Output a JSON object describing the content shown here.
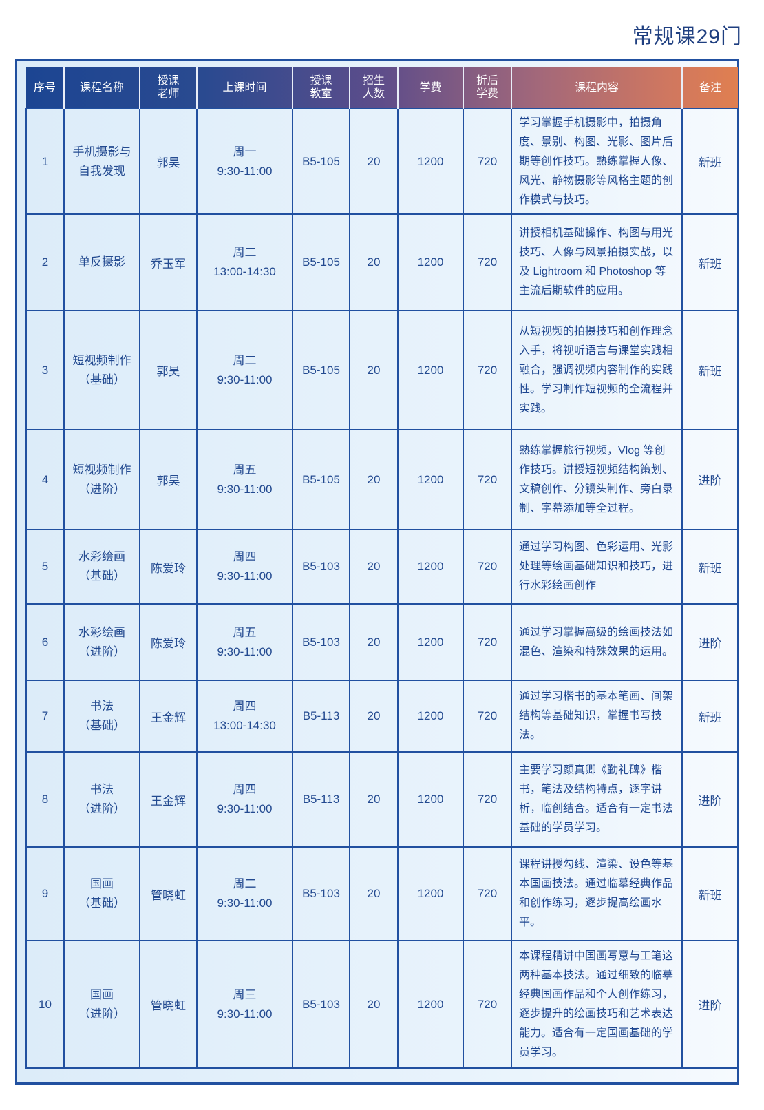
{
  "title": "常规课29门",
  "headers": [
    "序号",
    "课程名称",
    "授课\n老师",
    "上课时间",
    "授课\n教室",
    "招生\n人数",
    "学费",
    "折后\n学费",
    "课程内容",
    "备注"
  ],
  "rows": [
    {
      "no": "1",
      "name": "手机摄影与\n自我发现",
      "teacher": "郭昊",
      "time": "周一\n9:30-11:00",
      "room": "B5-105",
      "quota": "20",
      "fee": "1200",
      "discount": "720",
      "content": "学习掌握手机摄影中，拍摄角度、景别、构图、光影、图片后期等创作技巧。熟练掌握人像、风光、静物摄影等风格主题的创作模式与技巧。",
      "note": "新班"
    },
    {
      "no": "2",
      "name": "单反摄影",
      "teacher": "乔玉军",
      "time": "周二\n13:00-14:30",
      "room": "B5-105",
      "quota": "20",
      "fee": "1200",
      "discount": "720",
      "content": "讲授相机基础操作、构图与用光技巧、人像与风景拍摄实战，以及 Lightroom 和 Photoshop 等主流后期软件的应用。",
      "note": "新班"
    },
    {
      "no": "3",
      "name": "短视频制作\n（基础）",
      "teacher": "郭昊",
      "time": "周二\n9:30-11:00",
      "room": "B5-105",
      "quota": "20",
      "fee": "1200",
      "discount": "720",
      "content": "从短视频的拍摄技巧和创作理念入手，将视听语言与课堂实践相融合，强调视频内容制作的实践性。学习制作短视频的全流程并实践。",
      "note": "新班"
    },
    {
      "no": "4",
      "name": "短视频制作\n（进阶）",
      "teacher": "郭昊",
      "time": "周五\n9:30-11:00",
      "room": "B5-105",
      "quota": "20",
      "fee": "1200",
      "discount": "720",
      "content": "熟练掌握旅行视频，Vlog 等创作技巧。讲授短视频结构策划、文稿创作、分镜头制作、旁白录制、字幕添加等全过程。",
      "note": "进阶"
    },
    {
      "no": "5",
      "name": "水彩绘画\n（基础）",
      "teacher": "陈爱玲",
      "time": "周四\n9:30-11:00",
      "room": "B5-103",
      "quota": "20",
      "fee": "1200",
      "discount": "720",
      "content": "通过学习构图、色彩运用、光影处理等绘画基础知识和技巧，进行水彩绘画创作",
      "note": "新班"
    },
    {
      "no": "6",
      "name": "水彩绘画\n（进阶）",
      "teacher": "陈爱玲",
      "time": "周五\n9:30-11:00",
      "room": "B5-103",
      "quota": "20",
      "fee": "1200",
      "discount": "720",
      "content": "通过学习掌握高级的绘画技法如混色、渲染和特殊效果的运用。",
      "note": "进阶"
    },
    {
      "no": "7",
      "name": "书法\n（基础）",
      "teacher": "王金辉",
      "time": "周四\n13:00-14:30",
      "room": "B5-113",
      "quota": "20",
      "fee": "1200",
      "discount": "720",
      "content": "通过学习楷书的基本笔画、间架结构等基础知识，掌握书写技法。",
      "note": "新班"
    },
    {
      "no": "8",
      "name": "书法\n（进阶）",
      "teacher": "王金辉",
      "time": "周四\n9:30-11:00",
      "room": "B5-113",
      "quota": "20",
      "fee": "1200",
      "discount": "720",
      "content": "主要学习颜真卿《勤礼碑》楷书，笔法及结构特点，逐字讲析，临创结合。适合有一定书法基础的学员学习。",
      "note": "进阶"
    },
    {
      "no": "9",
      "name": "国画\n（基础）",
      "teacher": "管晓虹",
      "time": "周二\n9:30-11:00",
      "room": "B5-103",
      "quota": "20",
      "fee": "1200",
      "discount": "720",
      "content": "课程讲授勾线、渲染、设色等基本国画技法。通过临摹经典作品和创作练习，逐步提高绘画水平。",
      "note": "新班"
    },
    {
      "no": "10",
      "name": "国画\n（进阶）",
      "teacher": "管晓虹",
      "time": "周三\n9:30-11:00",
      "room": "B5-103",
      "quota": "20",
      "fee": "1200",
      "discount": "720",
      "content": "本课程精讲中国画写意与工笔这两种基本技法。通过细致的临摹经典国画作品和个人创作练习，逐步提升的绘画技巧和艺术表达能力。适合有一定国画基础的学员学习。",
      "note": "进阶"
    }
  ]
}
